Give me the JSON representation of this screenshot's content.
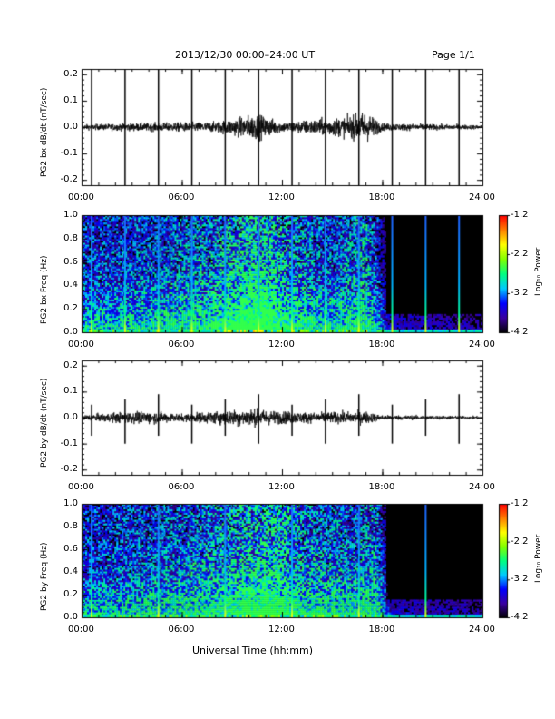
{
  "header": {
    "title": "2013/12/30  00:00–24:00 UT",
    "page": "Page 1/1"
  },
  "footer": {
    "xlabel": "Universal Time (hh:mm)"
  },
  "colorbar": {
    "label": "Log₁₀ Power",
    "ticks": [
      "-1.2",
      "-2.2",
      "-3.2",
      "-4.2"
    ],
    "range": [
      -4.2,
      -1.2
    ],
    "colors": [
      "#000000",
      "#3a00a0",
      "#0000ff",
      "#00c8ff",
      "#00ff80",
      "#80ff00",
      "#ffff00",
      "#ff8000",
      "#ff0000"
    ]
  },
  "chart_data": [
    {
      "type": "line",
      "ylabel": "PG2 bx dB/dt (nT/sec)",
      "x_ticks": [
        "00:00",
        "06:00",
        "12:00",
        "18:00",
        "24:00"
      ],
      "y_ticks": [
        "0.2",
        "0.1",
        "0.0",
        "-0.1",
        "-0.2"
      ],
      "xlim": [
        0,
        24
      ],
      "ylim": [
        -0.22,
        0.22
      ],
      "spike_times_h": [
        0.6,
        2.6,
        4.6,
        6.6,
        8.6,
        10.6,
        12.6,
        14.6,
        16.6,
        18.6,
        20.6,
        22.6
      ],
      "envelope": [
        [
          0,
          0.01
        ],
        [
          3,
          0.015
        ],
        [
          8,
          0.02
        ],
        [
          10.5,
          0.05
        ],
        [
          12,
          0.02
        ],
        [
          16,
          0.04
        ],
        [
          17,
          0.06
        ],
        [
          18,
          0.015
        ],
        [
          24,
          0.008
        ]
      ]
    },
    {
      "type": "heatmap",
      "ylabel": "PG2 bx Freq (Hz)",
      "x_ticks": [
        "00:00",
        "06:00",
        "12:00",
        "18:00",
        "24:00"
      ],
      "y_ticks": [
        "1.0",
        "0.8",
        "0.6",
        "0.4",
        "0.2",
        "0.0"
      ],
      "xlim": [
        0,
        24
      ],
      "ylim": [
        0,
        1.0
      ],
      "zlim": [
        -4.2,
        -1.2
      ]
    },
    {
      "type": "line",
      "ylabel": "PG2 by dB/dt (nT/sec)",
      "x_ticks": [
        "00:00",
        "06:00",
        "12:00",
        "18:00",
        "24:00"
      ],
      "y_ticks": [
        "0.2",
        "0.1",
        "0.0",
        "-0.1",
        "-0.2"
      ],
      "xlim": [
        0,
        24
      ],
      "ylim": [
        -0.22,
        0.22
      ],
      "spike_times_h": [
        0.6,
        2.6,
        4.6,
        6.6,
        8.6,
        10.6,
        12.6,
        14.6,
        16.6,
        18.6,
        20.6,
        22.6
      ],
      "envelope": [
        [
          0,
          0.01
        ],
        [
          2,
          0.02
        ],
        [
          4,
          0.025
        ],
        [
          6,
          0.015
        ],
        [
          10,
          0.035
        ],
        [
          12,
          0.025
        ],
        [
          14,
          0.02
        ],
        [
          17,
          0.025
        ],
        [
          18,
          0.01
        ],
        [
          24,
          0.006
        ]
      ]
    },
    {
      "type": "heatmap",
      "ylabel": "PG2 by Freq (Hz)",
      "x_ticks": [
        "00:00",
        "06:00",
        "12:00",
        "18:00",
        "24:00"
      ],
      "y_ticks": [
        "1.0",
        "0.8",
        "0.6",
        "0.4",
        "0.2",
        "0.0"
      ],
      "xlim": [
        0,
        24
      ],
      "ylim": [
        0,
        1.0
      ],
      "zlim": [
        -4.2,
        -1.2
      ]
    }
  ]
}
